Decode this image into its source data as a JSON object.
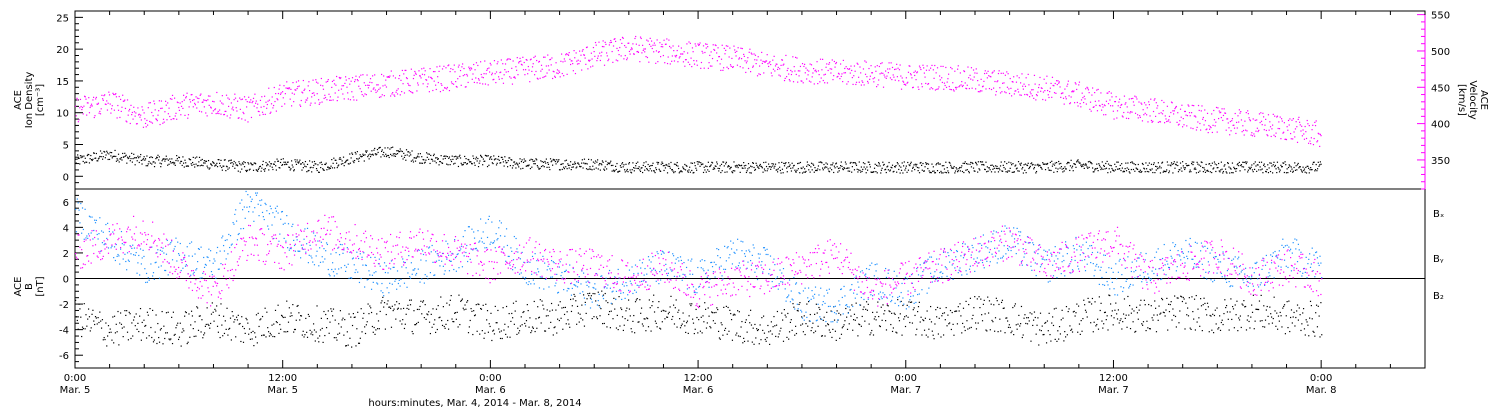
{
  "chart_data": [
    {
      "type": "scatter",
      "panel": "top",
      "left_axis": {
        "label_lines": [
          "ACE",
          "Ion Density",
          "[cm⁻³]"
        ],
        "ylim": [
          -2,
          26
        ],
        "ticks": [
          0,
          5,
          10,
          15,
          20,
          25
        ],
        "minor_step": 1,
        "color": "#000000"
      },
      "right_axis": {
        "label_lines": [
          "ACE",
          "Velocity",
          "[km/s]"
        ],
        "ylim": [
          310,
          555
        ],
        "ticks": [
          350,
          400,
          450,
          500,
          550
        ],
        "minor_step": 10,
        "color": "#ff00ff"
      },
      "series": [
        {
          "axis": "left",
          "color": "#000000",
          "x": [
            0,
            2,
            4,
            6,
            8,
            10,
            12,
            14,
            16,
            18,
            20,
            22,
            24,
            26,
            28,
            30,
            32,
            34,
            36,
            38,
            40,
            42,
            44,
            46,
            48,
            50,
            52,
            54,
            56,
            58,
            60,
            62,
            64,
            66,
            68,
            70,
            72
          ],
          "y": [
            2.5,
            3.5,
            2.5,
            2.5,
            2,
            1.5,
            2,
            1.5,
            3,
            4,
            3,
            2.5,
            2.5,
            2,
            2,
            2,
            1.5,
            1.5,
            1.5,
            1.5,
            1.5,
            1.5,
            1.5,
            1.5,
            1.5,
            1.5,
            1.5,
            1.5,
            1.5,
            1.8,
            1.5,
            1.5,
            1.5,
            1.5,
            1.5,
            1.5,
            1.5
          ]
        },
        {
          "axis": "right",
          "color": "#ff00ff",
          "x": [
            0,
            2,
            4,
            6,
            8,
            10,
            12,
            14,
            16,
            18,
            20,
            22,
            24,
            26,
            28,
            30,
            32,
            34,
            36,
            38,
            40,
            42,
            44,
            46,
            48,
            50,
            52,
            54,
            56,
            58,
            60,
            62,
            64,
            66,
            68,
            70,
            72
          ],
          "y": [
            420,
            430,
            410,
            425,
            430,
            420,
            440,
            445,
            450,
            455,
            460,
            465,
            470,
            475,
            480,
            495,
            505,
            500,
            495,
            490,
            480,
            475,
            470,
            470,
            465,
            465,
            460,
            455,
            450,
            440,
            425,
            420,
            410,
            405,
            400,
            395,
            385
          ]
        }
      ]
    },
    {
      "type": "line",
      "panel": "bottom",
      "left_axis": {
        "label_lines": [
          "ACE",
          "B",
          "[nT]"
        ],
        "ylim": [
          -7,
          7
        ],
        "ticks": [
          -6,
          -4,
          -2,
          0,
          2,
          4,
          6
        ],
        "minor_step": 0.5
      },
      "zero_line": true,
      "legend_position": "right",
      "series": [
        {
          "name": "Bₓ",
          "color": "#000000",
          "x": [
            0,
            2,
            4,
            6,
            8,
            10,
            12,
            14,
            16,
            18,
            20,
            22,
            24,
            26,
            28,
            30,
            32,
            34,
            36,
            38,
            40,
            42,
            44,
            46,
            48,
            50,
            52,
            54,
            56,
            58,
            60,
            62,
            64,
            66,
            68,
            70,
            72
          ],
          "y": [
            -3,
            -4,
            -3.5,
            -4,
            -3,
            -4,
            -3,
            -3.5,
            -4,
            -2.5,
            -3,
            -2.5,
            -3.5,
            -3,
            -3,
            -2,
            -3,
            -2.5,
            -3,
            -3.5,
            -4,
            -3,
            -3.5,
            -3,
            -3,
            -3.5,
            -2.5,
            -3,
            -4,
            -3,
            -2.5,
            -3,
            -2.5,
            -3,
            -2.5,
            -3,
            -3.2
          ]
        },
        {
          "name": "Bᵧ",
          "color": "#1e90ff",
          "x": [
            0,
            2,
            4,
            6,
            8,
            10,
            12,
            14,
            16,
            18,
            20,
            22,
            24,
            26,
            28,
            30,
            32,
            34,
            36,
            38,
            40,
            42,
            44,
            46,
            48,
            50,
            52,
            54,
            56,
            58,
            60,
            62,
            64,
            66,
            68,
            70,
            72
          ],
          "y": [
            5,
            3,
            1,
            2,
            1,
            6,
            4,
            2,
            1,
            0,
            1,
            2,
            4,
            1,
            0,
            -1,
            0,
            1,
            0,
            2,
            1,
            -2,
            -2,
            0,
            -1,
            1,
            2,
            3,
            1,
            2,
            0,
            1,
            2,
            1,
            0,
            2,
            1
          ]
        },
        {
          "name": "B₂",
          "color": "#ff00ff",
          "x": [
            0,
            2,
            4,
            6,
            8,
            10,
            12,
            14,
            16,
            18,
            20,
            22,
            24,
            26,
            28,
            30,
            32,
            34,
            36,
            38,
            40,
            42,
            44,
            46,
            48,
            50,
            52,
            54,
            56,
            58,
            60,
            62,
            64,
            66,
            68,
            70,
            72
          ],
          "y": [
            2,
            3,
            4,
            1,
            -1,
            3,
            2,
            4,
            3,
            2,
            3,
            2,
            1,
            2,
            1,
            1,
            0,
            1,
            -1,
            0,
            0,
            1,
            2,
            -1,
            0,
            1,
            2,
            3,
            1,
            2,
            3,
            0,
            1,
            2,
            0,
            1,
            0
          ]
        }
      ]
    }
  ],
  "x_axis": {
    "range_hours": [
      0,
      78
    ],
    "major_ticks": [
      {
        "hour": 0,
        "time": "0:00",
        "date": "Mar. 5"
      },
      {
        "hour": 12,
        "time": "12:00",
        "date": "Mar. 5"
      },
      {
        "hour": 24,
        "time": "0:00",
        "date": "Mar. 6"
      },
      {
        "hour": 36,
        "time": "12:00",
        "date": "Mar. 6"
      },
      {
        "hour": 48,
        "time": "0:00",
        "date": "Mar. 7"
      },
      {
        "hour": 60,
        "time": "12:00",
        "date": "Mar. 7"
      },
      {
        "hour": 72,
        "time": "0:00",
        "date": "Mar. 8"
      }
    ],
    "minor_step_hours": 2,
    "title": "hours:minutes, Mar.  4, 2014 - Mar.  8, 2014"
  }
}
